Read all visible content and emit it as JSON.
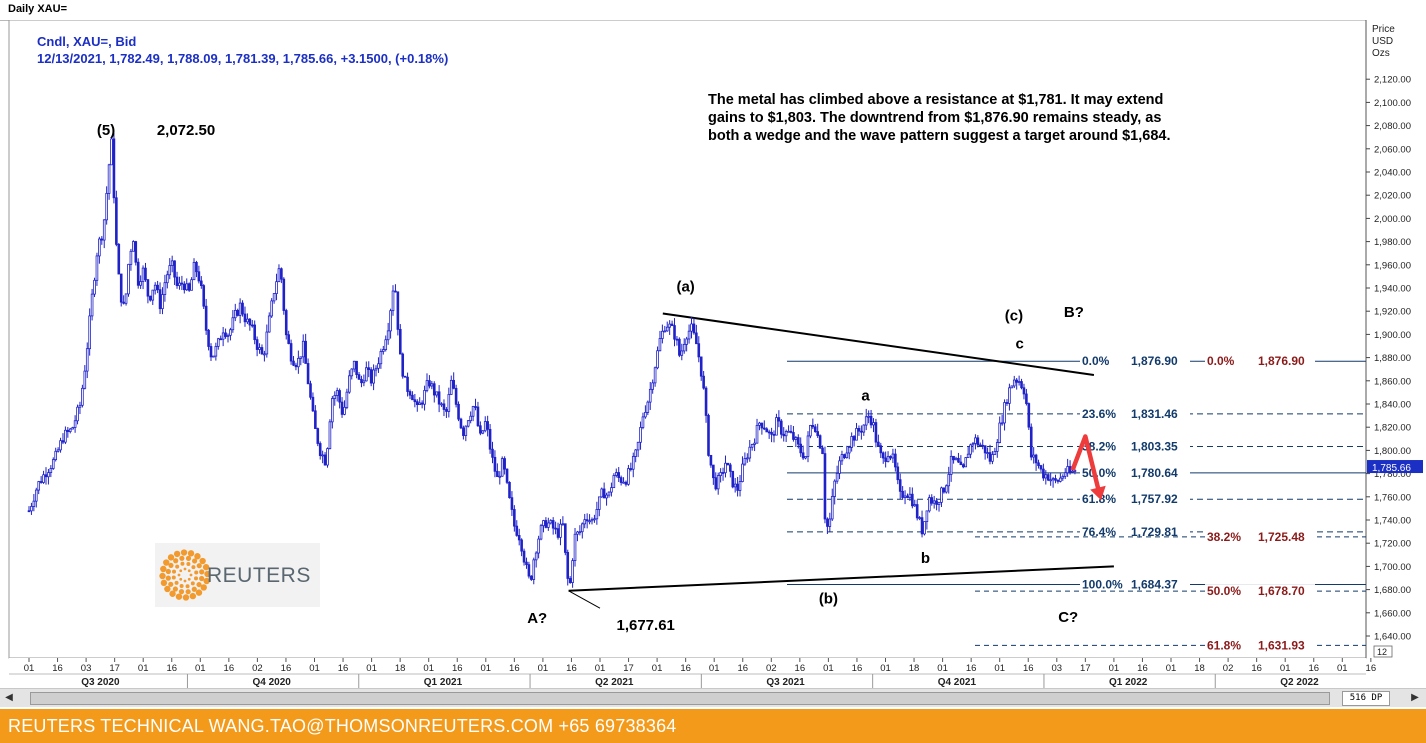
{
  "window": {
    "title": "Daily XAU="
  },
  "header": {
    "instrument_line": "Cndl, XAU=, Bid",
    "ohlc_line": "12/13/2021, 1,782.49, 1,788.09, 1,781.39, 1,785.66, +3.1500, (+0.18%)"
  },
  "note": "The metal has climbed above a resistance at $1,781. It may extend gains to $1,803. The downtrend from $1,876.90 remains steady, as both a wedge and the wave pattern suggest a target around $1,684.",
  "logo": {
    "text": "REUTERS"
  },
  "footer": {
    "text": "REUTERS TECHNICAL  WANG.TAO@THOMSONREUTERS.COM  +65 69738364"
  },
  "scrollbar": {
    "zoom_label": "516 DP",
    "left_arrow": "◀",
    "right_arrow": "▶"
  },
  "colors": {
    "candle": "#1f22c8",
    "fib_blue": "#123a6b",
    "fib_red": "#8b1a1a",
    "arrow": "#ee3b3b",
    "footer": "#f39a1a"
  },
  "chart_data": {
    "type": "candlestick",
    "title": "Daily XAU=",
    "y_axis": {
      "label": [
        "Price",
        "USD",
        "Ozs"
      ],
      "range": [
        1620,
        2130
      ],
      "ticks": [
        1640,
        1660,
        1680,
        1700,
        1720,
        1740,
        1760,
        1780,
        1800,
        1820,
        1840,
        1860,
        1880,
        1900,
        1920,
        1940,
        1960,
        1980,
        2000,
        2020,
        2040,
        2060,
        2080,
        2100,
        2120
      ],
      "tick_labels": [
        "1,640.00",
        "1,660.00",
        "1,680.00",
        "1,700.00",
        "1,720.00",
        "1,740.00",
        "1,760.00",
        "1,780.00",
        "1,800.00",
        "1,820.00",
        "1,840.00",
        "1,860.00",
        "1,880.00",
        "1,900.00",
        "1,920.00",
        "1,940.00",
        "1,960.00",
        "1,980.00",
        "2,000.00",
        "2,020.00",
        "2,040.00",
        "2,060.00",
        "2,080.00",
        "2,100.00",
        "2,120.00"
      ],
      "last_price_label": "1,785.66",
      "corner_label": "12"
    },
    "x_axis": {
      "day_labels": [
        {
          "t": 0,
          "label": "01"
        },
        {
          "t": 1,
          "label": "16"
        },
        {
          "t": 2,
          "label": "03"
        },
        {
          "t": 3,
          "label": "17"
        },
        {
          "t": 4,
          "label": "01"
        },
        {
          "t": 5,
          "label": "16"
        },
        {
          "t": 6,
          "label": "01"
        },
        {
          "t": 7,
          "label": "16"
        },
        {
          "t": 8,
          "label": "02"
        },
        {
          "t": 9,
          "label": "16"
        },
        {
          "t": 10,
          "label": "01"
        },
        {
          "t": 11,
          "label": "16"
        },
        {
          "t": 12,
          "label": "01"
        },
        {
          "t": 13,
          "label": "18"
        },
        {
          "t": 14,
          "label": "01"
        },
        {
          "t": 15,
          "label": "16"
        },
        {
          "t": 16,
          "label": "01"
        },
        {
          "t": 17,
          "label": "16"
        },
        {
          "t": 18,
          "label": "01"
        },
        {
          "t": 19,
          "label": "16"
        },
        {
          "t": 20,
          "label": "01"
        },
        {
          "t": 21,
          "label": "17"
        },
        {
          "t": 22,
          "label": "01"
        },
        {
          "t": 23,
          "label": "16"
        },
        {
          "t": 24,
          "label": "01"
        },
        {
          "t": 25,
          "label": "16"
        },
        {
          "t": 26,
          "label": "02"
        },
        {
          "t": 27,
          "label": "16"
        },
        {
          "t": 28,
          "label": "01"
        },
        {
          "t": 29,
          "label": "16"
        },
        {
          "t": 30,
          "label": "01"
        },
        {
          "t": 31,
          "label": "18"
        },
        {
          "t": 32,
          "label": "01"
        },
        {
          "t": 33,
          "label": "16"
        },
        {
          "t": 34,
          "label": "01"
        },
        {
          "t": 35,
          "label": "16"
        },
        {
          "t": 36,
          "label": "03"
        },
        {
          "t": 37,
          "label": "17"
        },
        {
          "t": 38,
          "label": "01"
        },
        {
          "t": 39,
          "label": "16"
        },
        {
          "t": 40,
          "label": "01"
        },
        {
          "t": 41,
          "label": "18"
        },
        {
          "t": 42,
          "label": "02"
        },
        {
          "t": 43,
          "label": "16"
        },
        {
          "t": 44,
          "label": "01"
        },
        {
          "t": 45,
          "label": "16"
        },
        {
          "t": 46,
          "label": "01"
        },
        {
          "t": 47,
          "label": "16"
        }
      ],
      "quarter_labels": [
        {
          "t": 2.5,
          "label": "Q3 2020"
        },
        {
          "t": 8.5,
          "label": "Q4 2020"
        },
        {
          "t": 14.5,
          "label": "Q1 2021"
        },
        {
          "t": 20.5,
          "label": "Q2 2021"
        },
        {
          "t": 26.5,
          "label": "Q3 2021"
        },
        {
          "t": 32.5,
          "label": "Q4 2021"
        },
        {
          "t": 38.5,
          "label": "Q1 2022"
        },
        {
          "t": 44.5,
          "label": "Q2 2022"
        }
      ]
    },
    "path_points": [
      [
        0,
        1748
      ],
      [
        0.3,
        1770
      ],
      [
        0.6,
        1782
      ],
      [
        0.9,
        1792
      ],
      [
        1.2,
        1812
      ],
      [
        1.5,
        1818
      ],
      [
        1.8,
        1840
      ],
      [
        2.0,
        1880
      ],
      [
        2.2,
        1930
      ],
      [
        2.4,
        1975
      ],
      [
        2.6,
        1990
      ],
      [
        2.75,
        2030
      ],
      [
        2.85,
        2060
      ],
      [
        2.92,
        2068
      ],
      [
        3.0,
        2000
      ],
      [
        3.1,
        1960
      ],
      [
        3.2,
        1935
      ],
      [
        3.35,
        1920
      ],
      [
        3.5,
        1965
      ],
      [
        3.65,
        1985
      ],
      [
        3.8,
        1945
      ],
      [
        4.0,
        1955
      ],
      [
        4.2,
        1930
      ],
      [
        4.4,
        1945
      ],
      [
        4.6,
        1925
      ],
      [
        4.8,
        1950
      ],
      [
        5.0,
        1960
      ],
      [
        5.2,
        1940
      ],
      [
        5.4,
        1945
      ],
      [
        5.6,
        1935
      ],
      [
        5.8,
        1960
      ],
      [
        6.0,
        1945
      ],
      [
        6.2,
        1905
      ],
      [
        6.4,
        1880
      ],
      [
        6.6,
        1890
      ],
      [
        6.8,
        1905
      ],
      [
        7.0,
        1900
      ],
      [
        7.2,
        1915
      ],
      [
        7.4,
        1925
      ],
      [
        7.6,
        1912
      ],
      [
        7.8,
        1905
      ],
      [
        8.0,
        1890
      ],
      [
        8.2,
        1880
      ],
      [
        8.4,
        1910
      ],
      [
        8.6,
        1940
      ],
      [
        8.8,
        1960
      ],
      [
        9.0,
        1900
      ],
      [
        9.2,
        1880
      ],
      [
        9.4,
        1875
      ],
      [
        9.6,
        1890
      ],
      [
        9.8,
        1855
      ],
      [
        10.0,
        1820
      ],
      [
        10.2,
        1800
      ],
      [
        10.4,
        1790
      ],
      [
        10.6,
        1845
      ],
      [
        10.8,
        1850
      ],
      [
        11.0,
        1830
      ],
      [
        11.2,
        1860
      ],
      [
        11.4,
        1875
      ],
      [
        11.6,
        1855
      ],
      [
        11.8,
        1870
      ],
      [
        12.0,
        1860
      ],
      [
        12.2,
        1875
      ],
      [
        12.4,
        1890
      ],
      [
        12.6,
        1910
      ],
      [
        12.8,
        1950
      ],
      [
        13.0,
        1880
      ],
      [
        13.2,
        1855
      ],
      [
        13.4,
        1850
      ],
      [
        13.6,
        1835
      ],
      [
        13.8,
        1845
      ],
      [
        14.0,
        1860
      ],
      [
        14.2,
        1850
      ],
      [
        14.4,
        1840
      ],
      [
        14.6,
        1830
      ],
      [
        14.8,
        1860
      ],
      [
        15.0,
        1835
      ],
      [
        15.2,
        1815
      ],
      [
        15.4,
        1830
      ],
      [
        15.6,
        1840
      ],
      [
        15.8,
        1810
      ],
      [
        16.0,
        1825
      ],
      [
        16.2,
        1795
      ],
      [
        16.4,
        1775
      ],
      [
        16.6,
        1790
      ],
      [
        16.8,
        1760
      ],
      [
        17.0,
        1735
      ],
      [
        17.2,
        1725
      ],
      [
        17.4,
        1700
      ],
      [
        17.55,
        1685
      ],
      [
        17.7,
        1710
      ],
      [
        17.9,
        1730
      ],
      [
        18.1,
        1738
      ],
      [
        18.3,
        1735
      ],
      [
        18.5,
        1728
      ],
      [
        18.7,
        1735
      ],
      [
        18.85,
        1690
      ],
      [
        18.95,
        1684
      ],
      [
        19.1,
        1725
      ],
      [
        19.3,
        1730
      ],
      [
        19.5,
        1745
      ],
      [
        19.7,
        1738
      ],
      [
        19.9,
        1750
      ],
      [
        20.1,
        1765
      ],
      [
        20.3,
        1760
      ],
      [
        20.5,
        1780
      ],
      [
        20.7,
        1775
      ],
      [
        20.9,
        1775
      ],
      [
        21.1,
        1785
      ],
      [
        21.3,
        1800
      ],
      [
        21.5,
        1830
      ],
      [
        21.7,
        1845
      ],
      [
        21.9,
        1870
      ],
      [
        22.1,
        1895
      ],
      [
        22.3,
        1910
      ],
      [
        22.5,
        1905
      ],
      [
        22.65,
        1898
      ],
      [
        22.8,
        1880
      ],
      [
        23.0,
        1900
      ],
      [
        23.2,
        1905
      ],
      [
        23.4,
        1890
      ],
      [
        23.6,
        1860
      ],
      [
        23.8,
        1800
      ],
      [
        24.0,
        1770
      ],
      [
        24.2,
        1775
      ],
      [
        24.4,
        1790
      ],
      [
        24.6,
        1775
      ],
      [
        24.8,
        1765
      ],
      [
        25.0,
        1785
      ],
      [
        25.2,
        1800
      ],
      [
        25.4,
        1810
      ],
      [
        25.6,
        1825
      ],
      [
        25.8,
        1820
      ],
      [
        26.0,
        1810
      ],
      [
        26.2,
        1825
      ],
      [
        26.4,
        1815
      ],
      [
        26.6,
        1815
      ],
      [
        26.8,
        1810
      ],
      [
        27.0,
        1800
      ],
      [
        27.2,
        1795
      ],
      [
        27.35,
        1820
      ],
      [
        27.5,
        1825
      ],
      [
        27.65,
        1810
      ],
      [
        27.8,
        1800
      ],
      [
        27.9,
        1730
      ],
      [
        28.05,
        1740
      ],
      [
        28.2,
        1770
      ],
      [
        28.4,
        1790
      ],
      [
        28.6,
        1800
      ],
      [
        28.8,
        1810
      ],
      [
        29.0,
        1815
      ],
      [
        29.2,
        1820
      ],
      [
        29.4,
        1830
      ],
      [
        29.55,
        1825
      ],
      [
        29.7,
        1805
      ],
      [
        29.9,
        1790
      ],
      [
        30.1,
        1800
      ],
      [
        30.3,
        1790
      ],
      [
        30.5,
        1760
      ],
      [
        30.7,
        1765
      ],
      [
        30.9,
        1760
      ],
      [
        31.1,
        1745
      ],
      [
        31.3,
        1730
      ],
      [
        31.5,
        1760
      ],
      [
        31.7,
        1755
      ],
      [
        31.9,
        1760
      ],
      [
        32.1,
        1770
      ],
      [
        32.3,
        1790
      ],
      [
        32.5,
        1790
      ],
      [
        32.7,
        1780
      ],
      [
        32.9,
        1800
      ],
      [
        33.1,
        1810
      ],
      [
        33.3,
        1805
      ],
      [
        33.5,
        1800
      ],
      [
        33.7,
        1790
      ],
      [
        33.9,
        1810
      ],
      [
        34.1,
        1830
      ],
      [
        34.3,
        1850
      ],
      [
        34.5,
        1862
      ],
      [
        34.7,
        1860
      ],
      [
        34.9,
        1850
      ],
      [
        35.1,
        1795
      ],
      [
        35.3,
        1790
      ],
      [
        35.5,
        1780
      ],
      [
        35.7,
        1778
      ],
      [
        35.9,
        1772
      ],
      [
        36.1,
        1775
      ],
      [
        36.3,
        1782
      ],
      [
        36.5,
        1780
      ],
      [
        36.6,
        1782
      ],
      [
        36.7,
        1785.66
      ]
    ],
    "trendlines": [
      {
        "name": "upper-wedge-line",
        "from": [
          22.2,
          1918
        ],
        "to": [
          37.3,
          1865
        ]
      },
      {
        "name": "lower-wedge-line",
        "from": [
          18.9,
          1679
        ],
        "to": [
          38.0,
          1700
        ]
      },
      {
        "name": "callout-line",
        "from": [
          18.9,
          1679
        ],
        "to": [
          20.0,
          1664
        ]
      }
    ],
    "annotations": [
      {
        "label": "(5)",
        "t": 2.7,
        "price": 2072
      },
      {
        "label": "2,072.50",
        "t": 5.5,
        "price": 2072
      },
      {
        "label": "(a)",
        "t": 23.0,
        "price": 1937
      },
      {
        "label": "a",
        "t": 29.3,
        "price": 1843
      },
      {
        "label": "(c)",
        "t": 34.5,
        "price": 1912
      },
      {
        "label": "c",
        "t": 34.7,
        "price": 1888
      },
      {
        "label": "B?",
        "t": 36.6,
        "price": 1915
      },
      {
        "label": "b",
        "t": 31.4,
        "price": 1703
      },
      {
        "label": "(b)",
        "t": 28.0,
        "price": 1668
      },
      {
        "label": "A?",
        "t": 17.8,
        "price": 1651
      },
      {
        "label": "1,677.61",
        "t": 21.6,
        "price": 1645
      },
      {
        "label": "C?",
        "t": 36.4,
        "price": 1652
      }
    ],
    "fib_left": [
      {
        "pct": "0.0%",
        "value": "1,876.90",
        "price": 1876.9,
        "style": "solid"
      },
      {
        "pct": "23.6%",
        "value": "1,831.46",
        "price": 1831.46,
        "style": "dashed"
      },
      {
        "pct": "38.2%",
        "value": "1,803.35",
        "price": 1803.35,
        "style": "dashed"
      },
      {
        "pct": "50.0%",
        "value": "1,780.64",
        "price": 1780.64,
        "style": "solid"
      },
      {
        "pct": "61.8%",
        "value": "1,757.92",
        "price": 1757.92,
        "style": "dashed"
      },
      {
        "pct": "76.4%",
        "value": "1,729.81",
        "price": 1729.81,
        "style": "dashed"
      },
      {
        "pct": "100.0%",
        "value": "1,684.37",
        "price": 1684.37,
        "style": "solid"
      }
    ],
    "fib_right": [
      {
        "pct": "0.0%",
        "value": "1,876.90",
        "price": 1876.9
      },
      {
        "pct": "38.2%",
        "value": "1,725.48",
        "price": 1725.48
      },
      {
        "pct": "50.0%",
        "value": "1,678.70",
        "price": 1678.7
      },
      {
        "pct": "61.8%",
        "value": "1,631.93",
        "price": 1631.93
      }
    ],
    "forecast_arrow": {
      "points": [
        [
          36.55,
          1783
        ],
        [
          37.0,
          1812
        ],
        [
          37.5,
          1762
        ]
      ]
    },
    "grid": false
  }
}
